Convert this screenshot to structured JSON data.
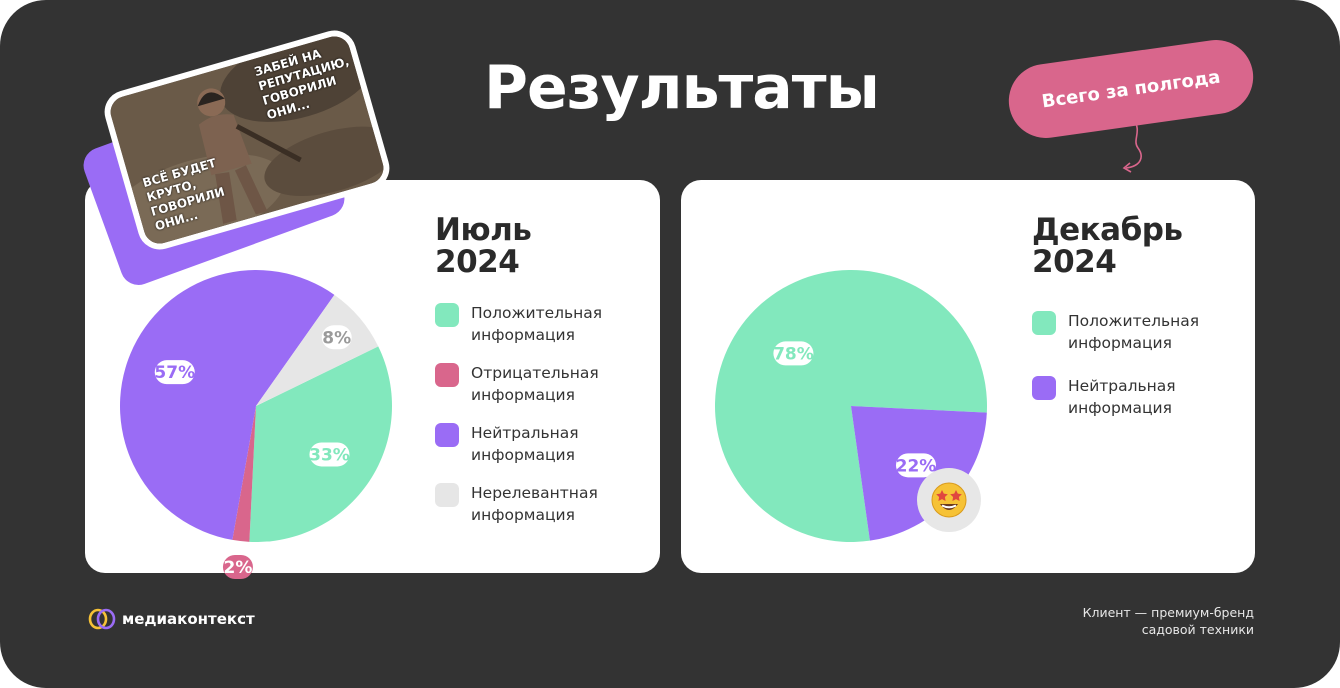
{
  "page": {
    "title": "Результаты",
    "period_badge": "Всего за полгода"
  },
  "colors": {
    "background": "#333333",
    "card": "#ffffff",
    "positive": "#82e8bd",
    "negative": "#d9668c",
    "neutral": "#9a6cf5",
    "irrelevant": "#e6e6e6",
    "badge": "#d9668c"
  },
  "meme": {
    "caption_top": [
      "ЗАБЕЙ НА",
      "РЕПУТАЦИЮ,",
      "ГОВОРИЛИ",
      "ОНИ..."
    ],
    "caption_bottom": [
      "ВСЁ БУДЕТ",
      "КРУТО,",
      "ГОВОРИЛИ",
      "ОНИ..."
    ]
  },
  "chart_data": [
    {
      "type": "pie",
      "title": [
        "Июль",
        "2024"
      ],
      "categories": [
        [
          "Положительная",
          "информация"
        ],
        [
          "Отрицательная",
          "информация"
        ],
        [
          "Нейтральная",
          "информация"
        ],
        [
          "Нерелевантная",
          "информация"
        ]
      ],
      "values": [
        33,
        2,
        57,
        8
      ],
      "labels": [
        "33%",
        "2%",
        "57%",
        "8%"
      ],
      "colors": [
        "#82e8bd",
        "#d9668c",
        "#9a6cf5",
        "#e6e6e6"
      ]
    },
    {
      "type": "pie",
      "title": [
        "Декабрь",
        "2024"
      ],
      "categories": [
        [
          "Положительная",
          "информация"
        ],
        [
          "Нейтральная",
          "информация"
        ]
      ],
      "values": [
        78,
        22
      ],
      "labels": [
        "78%",
        "22%"
      ],
      "colors": [
        "#82e8bd",
        "#9a6cf5"
      ],
      "annotation_icon": "star-struck-emoji-icon"
    }
  ],
  "footer": {
    "brand": "медиаконтекст",
    "client_note": [
      "Клиент — премиум-бренд",
      "садовой техники"
    ]
  }
}
